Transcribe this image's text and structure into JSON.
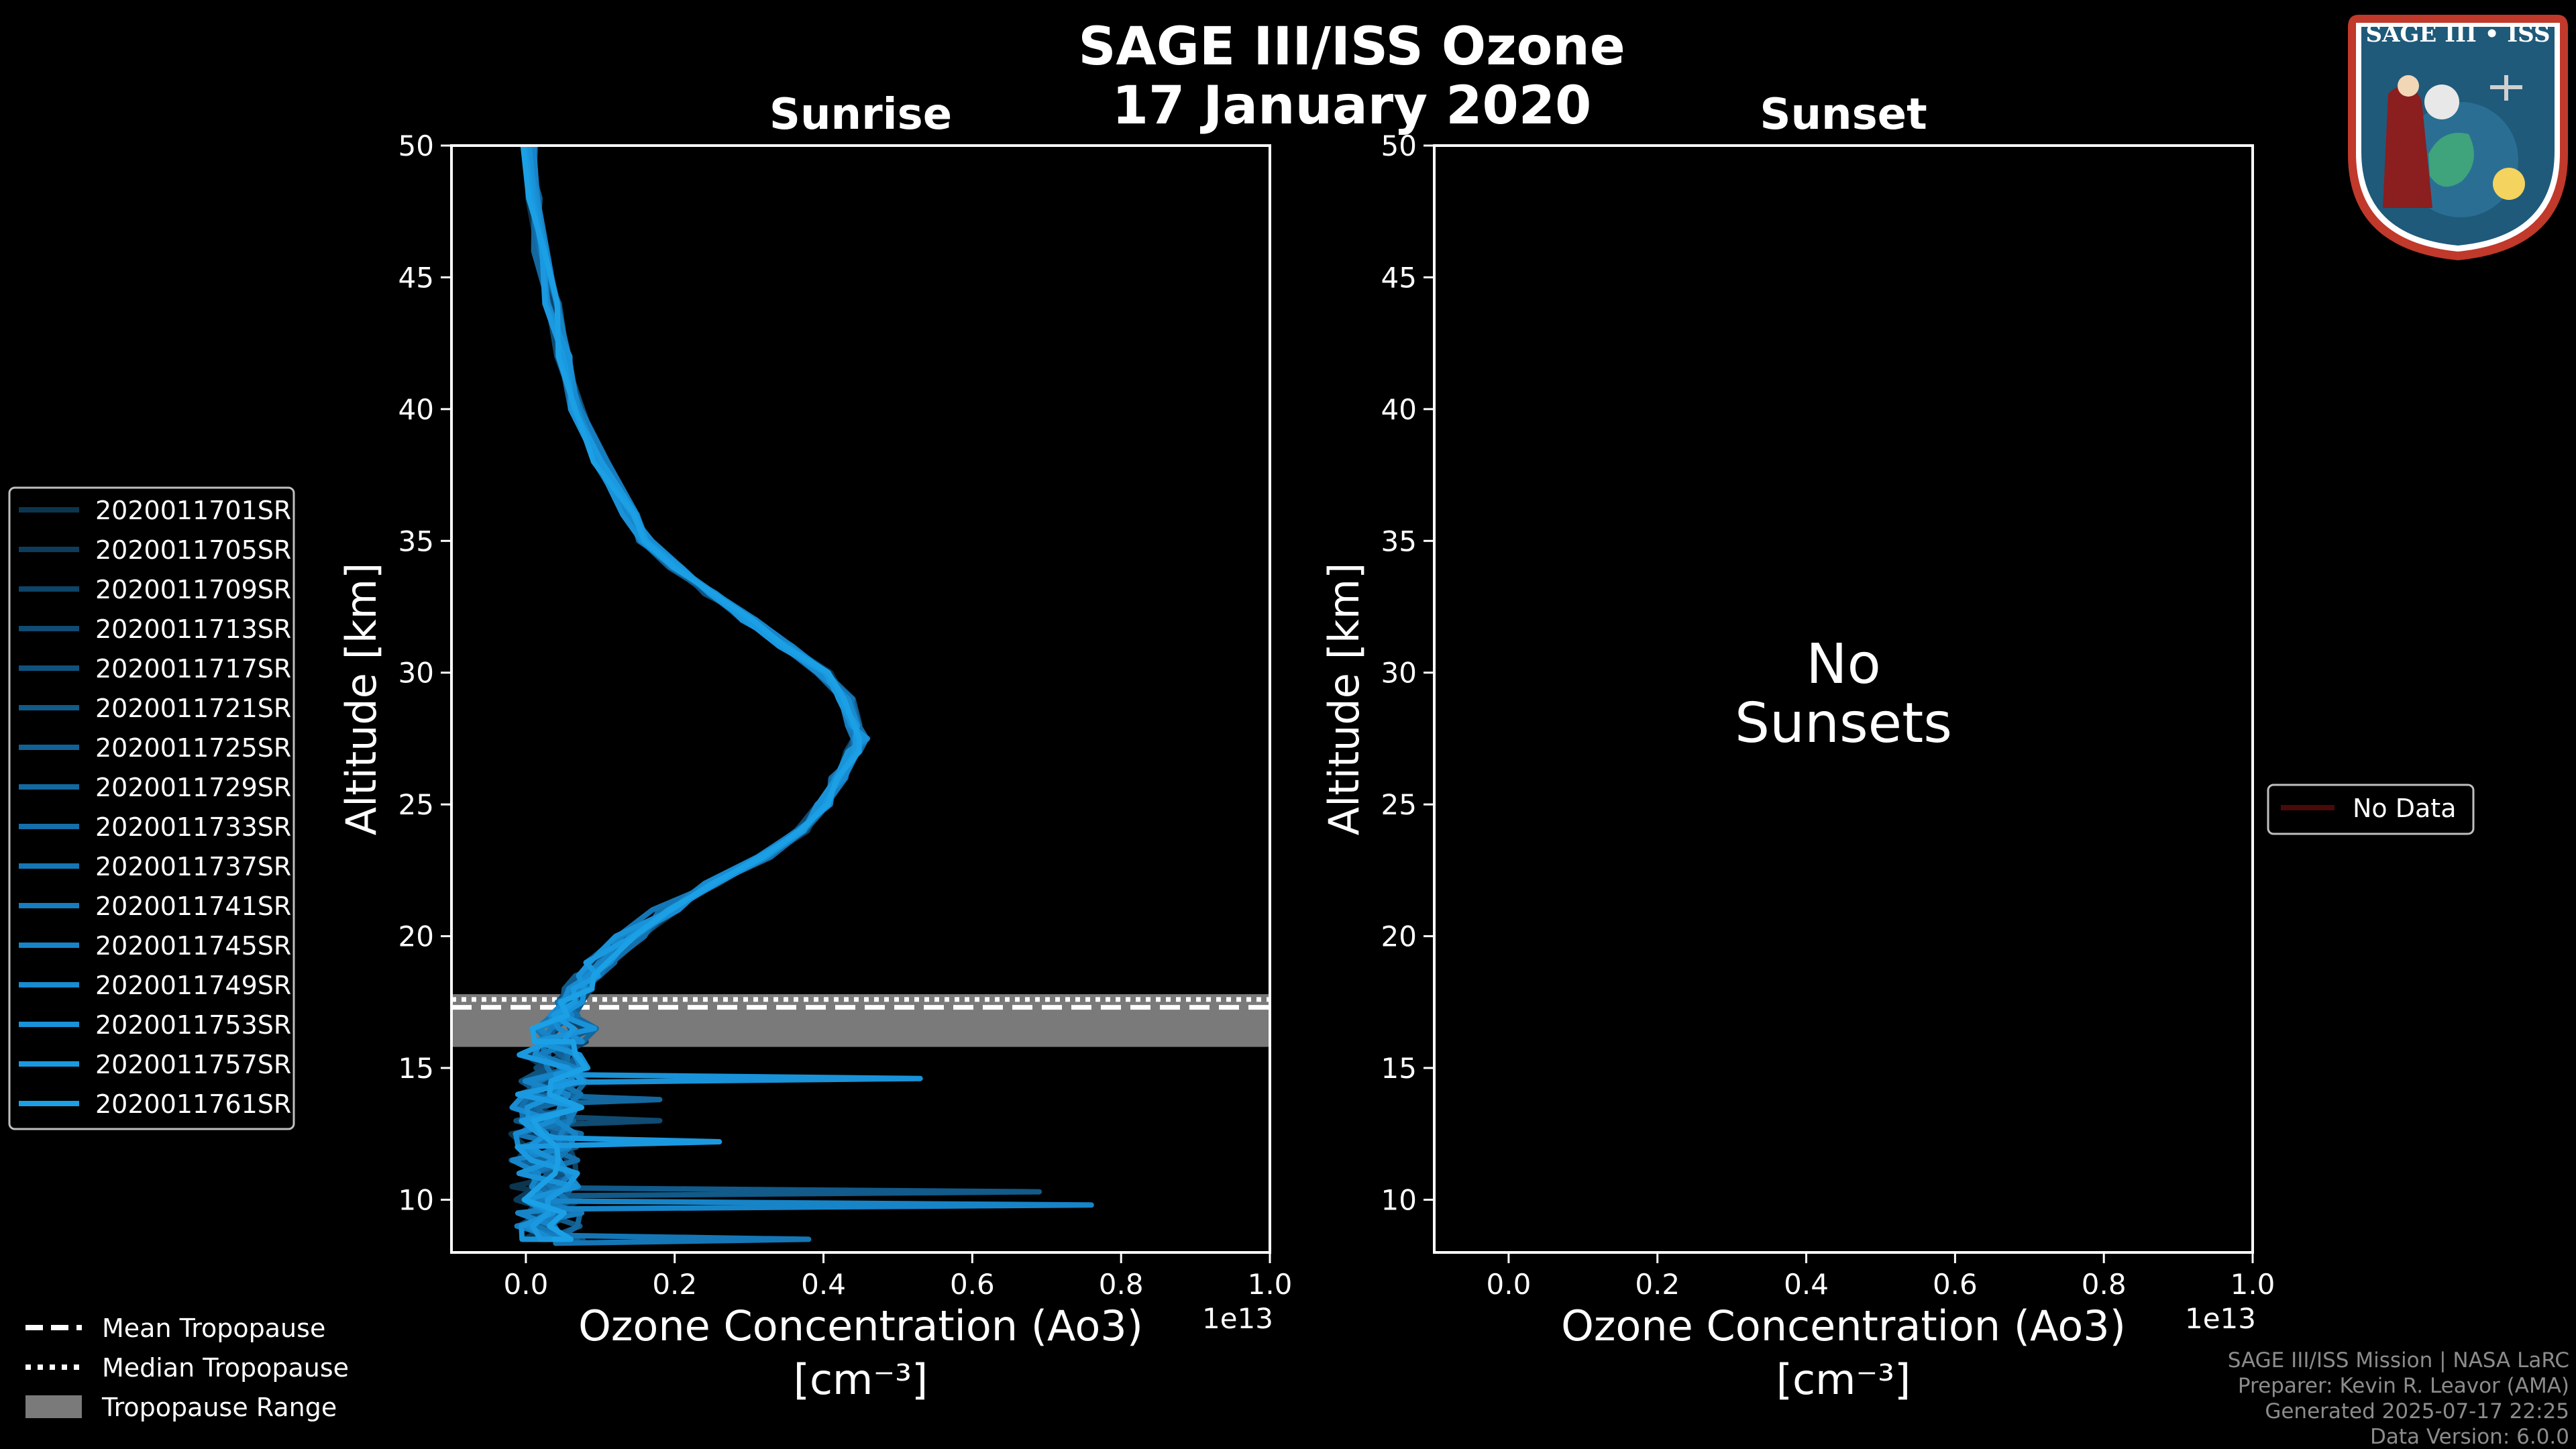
{
  "figure": {
    "title_line1": "SAGE III/ISS Ozone",
    "title_line2": "17 January 2020",
    "logo_text": "SAGE III • ISS",
    "footer": [
      "SAGE III/ISS Mission | NASA LaRC",
      "Preparer: Kevin R. Leavor (AMA)",
      "Generated 2025-07-17 22:25",
      "Data Version: 6.0.0"
    ]
  },
  "chart_data": [
    {
      "type": "line",
      "title": "Sunrise",
      "xlabel": "Ozone Concentration (Ao3)",
      "xunit": "[cm⁻³]",
      "ylabel": "Altitude [km]",
      "xlim": [
        -0.1,
        1.0
      ],
      "ylim": [
        8,
        50
      ],
      "x_scale_label": "1e13",
      "x_ticks": [
        "0.0",
        "0.2",
        "0.4",
        "0.6",
        "0.8",
        "1.0"
      ],
      "y_ticks": [
        "10",
        "15",
        "20",
        "25",
        "30",
        "35",
        "40",
        "45",
        "50"
      ],
      "x_tick_values": [
        0.0,
        0.2,
        0.4,
        0.6,
        0.8,
        1.0
      ],
      "y_tick_values": [
        10,
        15,
        20,
        25,
        30,
        35,
        40,
        45,
        50
      ],
      "tropopause": {
        "mean": 17.3,
        "median": 17.6,
        "range": [
          15.8,
          17.8
        ]
      },
      "mean_profile": {
        "altitude": [
          50,
          48,
          46,
          44,
          42,
          40,
          38,
          36,
          35,
          34,
          33,
          32,
          31,
          30,
          29,
          28,
          27.5,
          27,
          26,
          25,
          24,
          23,
          22,
          21,
          20,
          19,
          18.5,
          18,
          17.5,
          17,
          16.5,
          16,
          15,
          14,
          13,
          12,
          11,
          10,
          9,
          8.5
        ],
        "ozone": [
          0.005,
          0.01,
          0.02,
          0.035,
          0.05,
          0.07,
          0.1,
          0.14,
          0.16,
          0.2,
          0.25,
          0.3,
          0.35,
          0.4,
          0.43,
          0.44,
          0.45,
          0.44,
          0.42,
          0.4,
          0.37,
          0.32,
          0.25,
          0.19,
          0.14,
          0.1,
          0.08,
          0.07,
          0.06,
          0.05,
          0.05,
          0.04,
          0.04,
          0.03,
          0.03,
          0.03,
          0.03,
          0.03,
          0.03,
          0.03
        ]
      },
      "series": [
        {
          "name": "2020011701SR",
          "color": "#0c3650",
          "spikes": []
        },
        {
          "name": "2020011705SR",
          "color": "#0d3d5c",
          "spikes": []
        },
        {
          "name": "2020011709SR",
          "color": "#0e4468",
          "spikes": []
        },
        {
          "name": "2020011713SR",
          "color": "#0f4b73",
          "spikes": [
            {
              "alt": 13,
              "val": 0.18
            }
          ]
        },
        {
          "name": "2020011717SR",
          "color": "#10527e",
          "spikes": []
        },
        {
          "name": "2020011721SR",
          "color": "#115a89",
          "spikes": [
            {
              "alt": 10.3,
              "val": 0.69
            }
          ]
        },
        {
          "name": "2020011725SR",
          "color": "#126194",
          "spikes": []
        },
        {
          "name": "2020011729SR",
          "color": "#13689f",
          "spikes": [
            {
              "alt": 13.8,
              "val": 0.18
            }
          ]
        },
        {
          "name": "2020011733SR",
          "color": "#146faa",
          "spikes": []
        },
        {
          "name": "2020011737SR",
          "color": "#1576b5",
          "spikes": [
            {
              "alt": 8.5,
              "val": 0.38
            }
          ]
        },
        {
          "name": "2020011741SR",
          "color": "#167dbf",
          "spikes": []
        },
        {
          "name": "2020011745SR",
          "color": "#1784c8",
          "spikes": [
            {
              "alt": 9.8,
              "val": 0.76
            }
          ]
        },
        {
          "name": "2020011749SR",
          "color": "#188bd1",
          "spikes": []
        },
        {
          "name": "2020011753SR",
          "color": "#1992d8",
          "spikes": [
            {
              "alt": 14.6,
              "val": 0.53
            }
          ]
        },
        {
          "name": "2020011757SR",
          "color": "#1a99e0",
          "spikes": [
            {
              "alt": 12.2,
              "val": 0.26
            }
          ]
        },
        {
          "name": "2020011761SR",
          "color": "#1ba0e6",
          "spikes": []
        }
      ]
    },
    {
      "type": "line",
      "title": "Sunset",
      "xlabel": "Ozone Concentration (Ao3)",
      "xunit": "[cm⁻³]",
      "ylabel": "Altitude [km]",
      "xlim": [
        -0.1,
        1.0
      ],
      "ylim": [
        8,
        50
      ],
      "x_scale_label": "1e13",
      "x_ticks": [
        "0.0",
        "0.2",
        "0.4",
        "0.6",
        "0.8",
        "1.0"
      ],
      "y_ticks": [
        "10",
        "15",
        "20",
        "25",
        "30",
        "35",
        "40",
        "45",
        "50"
      ],
      "x_tick_values": [
        0.0,
        0.2,
        0.4,
        0.6,
        0.8,
        1.0
      ],
      "y_tick_values": [
        10,
        15,
        20,
        25,
        30,
        35,
        40,
        45,
        50
      ],
      "no_data_line1": "No",
      "no_data_line2": "Sunsets",
      "series": [
        {
          "name": "No Data",
          "color": "#4a0a0a"
        }
      ]
    }
  ],
  "tropopause_legend": [
    {
      "label": "Mean Tropopause",
      "style": "dashed"
    },
    {
      "label": "Median Tropopause",
      "style": "dotted"
    },
    {
      "label": "Tropopause Range",
      "style": "patch"
    }
  ]
}
